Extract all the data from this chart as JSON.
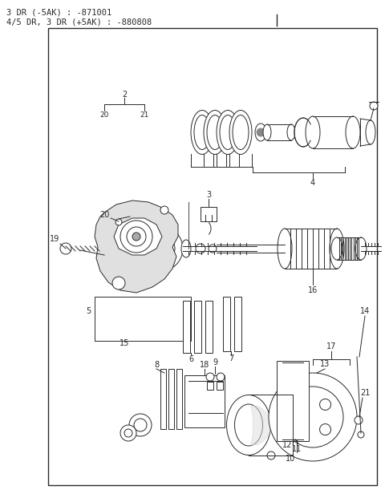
{
  "title_line1": "3 DR (-5AK) : -871001",
  "title_line2": "4/5 DR, 3 DR (+5AK) : -880808",
  "bg_color": "#ffffff",
  "line_color": "#2a2a2a",
  "text_color": "#2a2a2a",
  "fig_width": 4.8,
  "fig_height": 6.21,
  "dpi": 100
}
